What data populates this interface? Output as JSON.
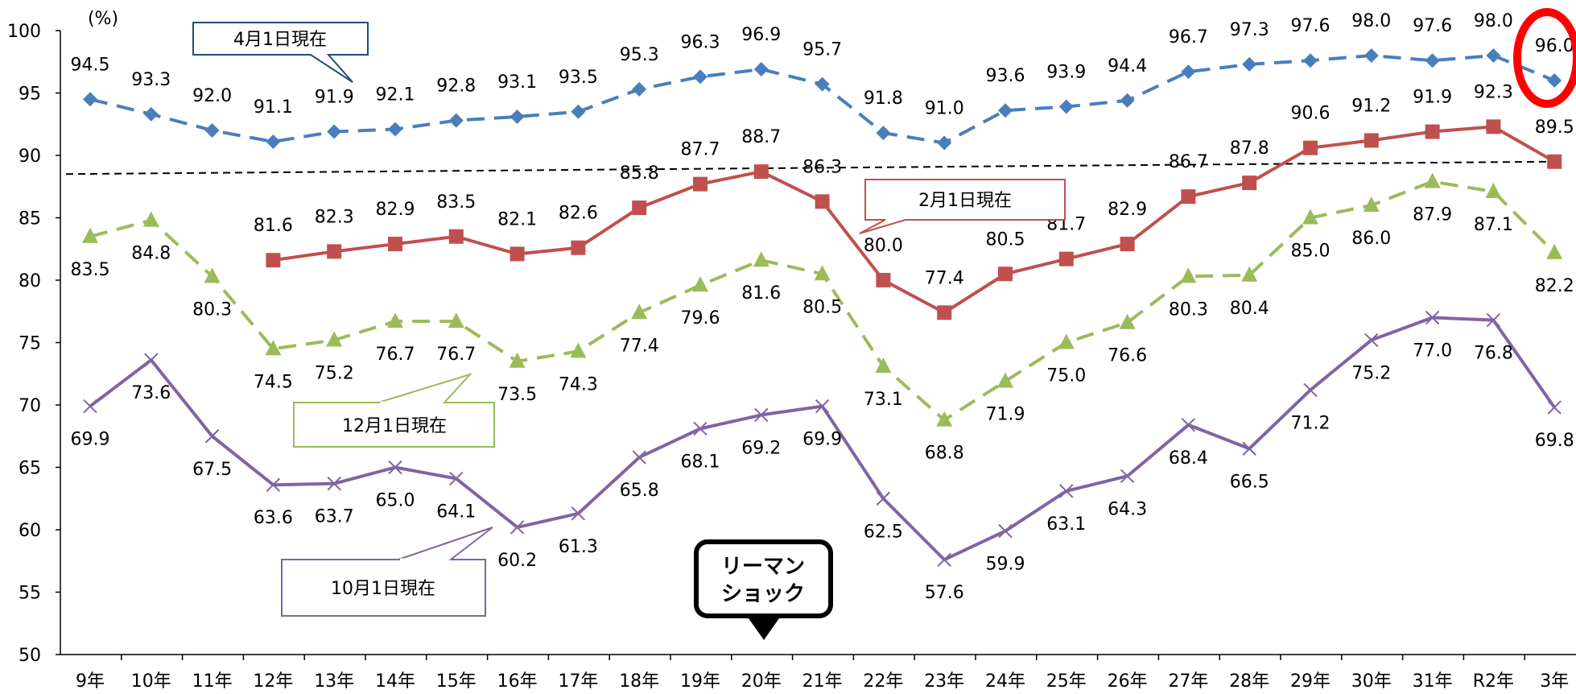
{
  "chart_data": {
    "type": "line",
    "unit_label": "(%)",
    "categories": [
      "9年",
      "10年",
      "11年",
      "12年",
      "13年",
      "14年",
      "15年",
      "16年",
      "17年",
      "18年",
      "19年",
      "20年",
      "21年",
      "22年",
      "23年",
      "24年",
      "25年",
      "26年",
      "27年",
      "28年",
      "29年",
      "30年",
      "31年",
      "R2年",
      "3年"
    ],
    "ylim": [
      50,
      100
    ],
    "yticks": [
      50,
      55,
      60,
      65,
      70,
      75,
      80,
      85,
      90,
      95,
      100
    ],
    "grid": false,
    "series": [
      {
        "name": "4月1日現在",
        "color": "#4a7ebb",
        "marker": "diamond",
        "dash": true,
        "values": [
          94.5,
          93.3,
          92.0,
          91.1,
          91.9,
          92.1,
          92.8,
          93.1,
          93.5,
          95.3,
          96.3,
          96.9,
          95.7,
          91.8,
          91.0,
          93.6,
          93.9,
          94.4,
          96.7,
          97.3,
          97.6,
          98.0,
          97.6,
          98.0,
          96.0
        ]
      },
      {
        "name": "2月1日現在",
        "color": "#c0504d",
        "marker": "square",
        "dash": false,
        "values": [
          null,
          null,
          null,
          81.6,
          82.3,
          82.9,
          83.5,
          82.1,
          82.6,
          85.8,
          87.7,
          88.7,
          86.3,
          80.0,
          77.4,
          80.5,
          81.7,
          82.9,
          86.7,
          87.8,
          90.6,
          91.2,
          91.9,
          92.3,
          89.5
        ]
      },
      {
        "name": "12月1日現在",
        "color": "#9bbb59",
        "marker": "triangle",
        "dash": true,
        "values": [
          83.5,
          84.8,
          80.3,
          74.5,
          75.2,
          76.7,
          76.7,
          73.5,
          74.3,
          77.4,
          79.6,
          81.6,
          80.5,
          73.1,
          68.8,
          71.9,
          75.0,
          76.6,
          80.3,
          80.4,
          85.0,
          86.0,
          87.9,
          87.1,
          82.2
        ]
      },
      {
        "name": "10月1日現在",
        "color": "#8064a2",
        "marker": "x",
        "dash": false,
        "values": [
          69.9,
          73.6,
          67.5,
          63.6,
          63.7,
          65.0,
          64.1,
          60.2,
          61.3,
          65.8,
          68.1,
          69.2,
          69.9,
          62.5,
          57.6,
          59.9,
          63.1,
          64.3,
          68.4,
          66.5,
          71.2,
          75.2,
          77.0,
          76.8,
          69.8
        ]
      }
    ],
    "reference_line": {
      "from": 88.5,
      "to": 89.5,
      "style": "dashed",
      "color": "#000000"
    },
    "annotations": {
      "lehman": "リーマン\nショック",
      "highlight": "96.0"
    }
  }
}
